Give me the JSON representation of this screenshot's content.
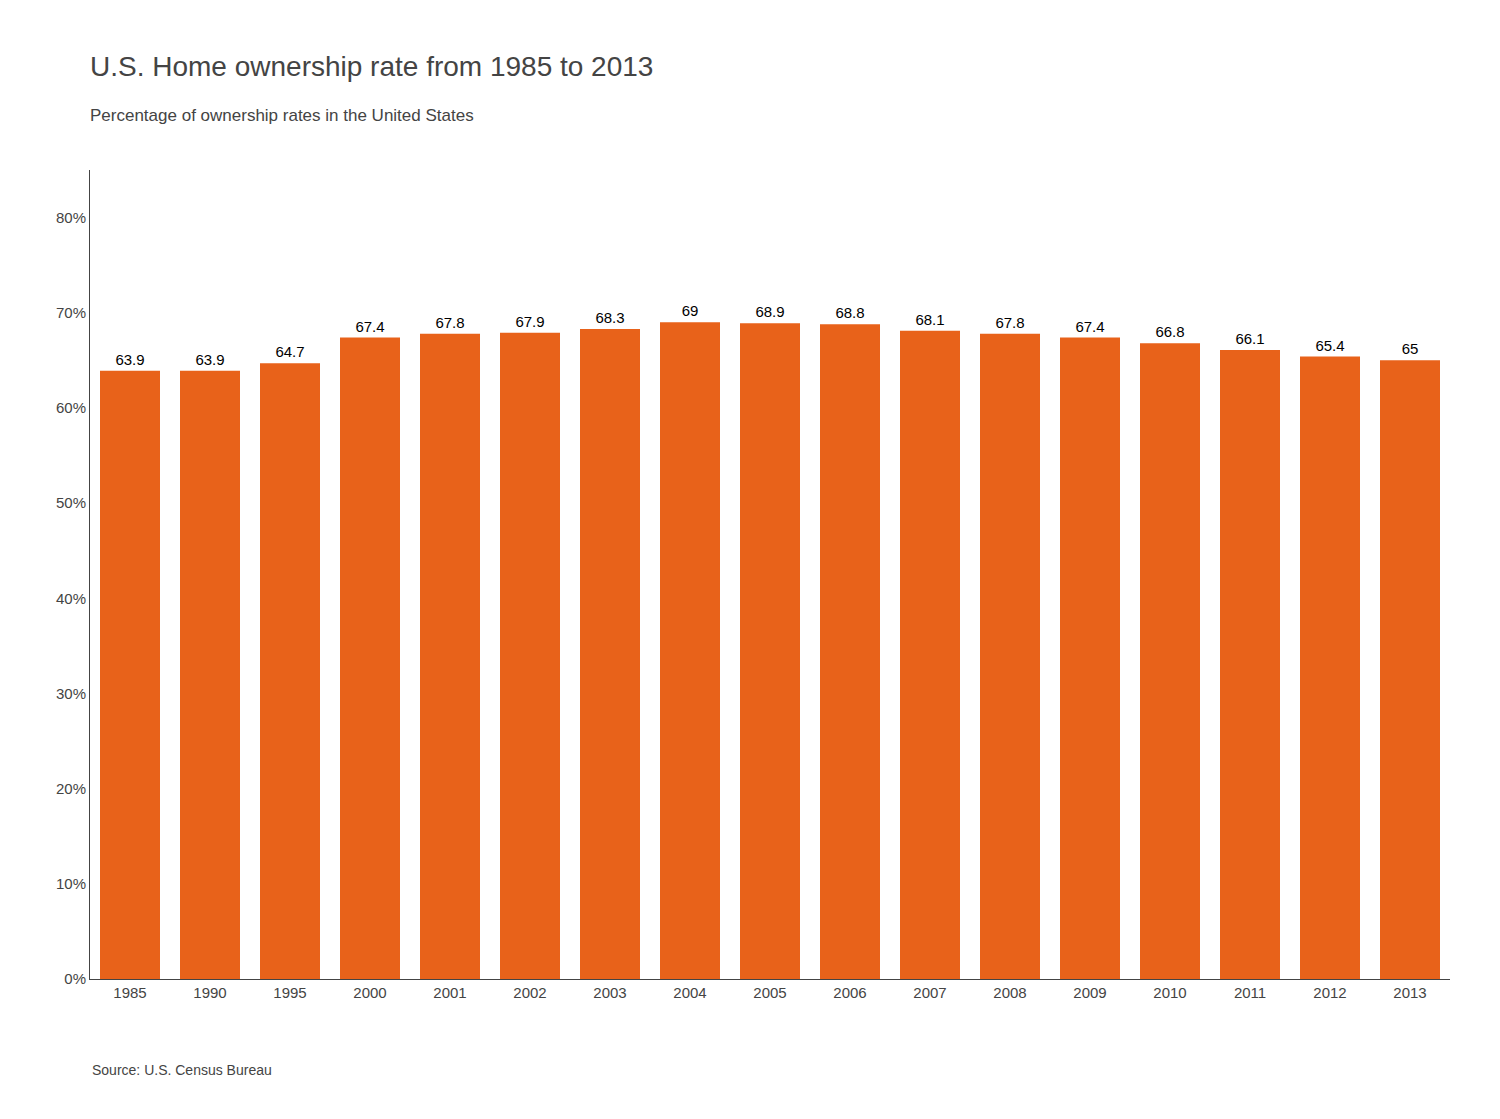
{
  "chart_data": {
    "type": "bar",
    "title": "U.S. Home ownership rate from 1985 to 2013",
    "subtitle": "Percentage of ownership rates in the United States",
    "source": "Source: U.S. Census Bureau",
    "categories": [
      "1985",
      "1990",
      "1995",
      "2000",
      "2001",
      "2002",
      "2003",
      "2004",
      "2005",
      "2006",
      "2007",
      "2008",
      "2009",
      "2010",
      "2011",
      "2012",
      "2013"
    ],
    "values": [
      63.9,
      63.9,
      64.7,
      67.4,
      67.8,
      67.9,
      68.3,
      69.0,
      68.9,
      68.8,
      68.1,
      67.8,
      67.4,
      66.8,
      66.1,
      65.4,
      65.0
    ],
    "color": "#E8621A",
    "ylim": [
      0,
      85
    ],
    "yticks": [
      {
        "value": 0,
        "label": "0%"
      },
      {
        "value": 10,
        "label": "10%"
      },
      {
        "value": 20,
        "label": "20%"
      },
      {
        "value": 30,
        "label": "30%"
      },
      {
        "value": 40,
        "label": "40%"
      },
      {
        "value": 50,
        "label": "50%"
      },
      {
        "value": 60,
        "label": "60%"
      },
      {
        "value": 70,
        "label": "70%"
      },
      {
        "value": 80,
        "label": "80%"
      }
    ],
    "grid": false,
    "data_labels": true
  }
}
